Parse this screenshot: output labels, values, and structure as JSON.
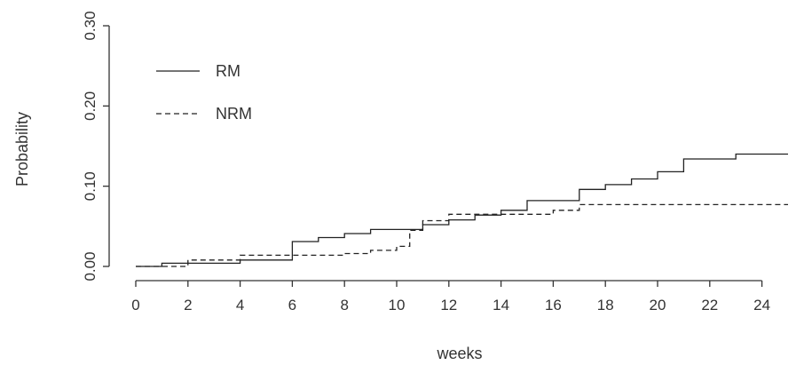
{
  "chart_data": {
    "type": "line",
    "step": true,
    "xlabel": "weeks",
    "ylabel": "Probability",
    "xlim": [
      0,
      25
    ],
    "ylim": [
      0,
      0.3
    ],
    "xticks": [
      0,
      2,
      4,
      6,
      8,
      10,
      12,
      14,
      16,
      18,
      20,
      22,
      24
    ],
    "xtick_labels": [
      "0",
      "2",
      "4",
      "6",
      "8",
      "10",
      "12",
      "14",
      "16",
      "18",
      "20",
      "22",
      "24"
    ],
    "yticks": [
      0,
      0.1,
      0.2,
      0.3
    ],
    "ytick_labels": [
      "0.00",
      "0.10",
      "0.20",
      "0.30"
    ],
    "grid": false,
    "legend_position": "top-left",
    "series": [
      {
        "name": "RM",
        "line_style": "solid",
        "color": "#222222",
        "x": [
          0,
          1,
          2,
          4,
          6,
          7,
          8,
          9,
          10,
          11,
          12,
          13,
          14,
          15,
          17,
          18,
          19,
          20,
          21,
          23,
          25
        ],
        "y": [
          0,
          0.004,
          0.004,
          0.008,
          0.031,
          0.036,
          0.041,
          0.046,
          0.046,
          0.052,
          0.058,
          0.064,
          0.07,
          0.082,
          0.096,
          0.102,
          0.109,
          0.118,
          0.134,
          0.14,
          0.14
        ]
      },
      {
        "name": "NRM",
        "line_style": "dashed",
        "color": "#222222",
        "x": [
          0,
          2,
          4,
          6,
          8,
          9,
          10,
          10.5,
          11,
          12,
          13,
          16,
          17,
          25
        ],
        "y": [
          0,
          0.008,
          0.014,
          0.014,
          0.016,
          0.02,
          0.025,
          0.045,
          0.057,
          0.065,
          0.065,
          0.07,
          0.077,
          0.077
        ]
      }
    ]
  }
}
